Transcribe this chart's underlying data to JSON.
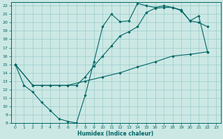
{
  "xlabel": "Humidex (Indice chaleur)",
  "bg_color": "#cce8e4",
  "grid_color": "#99cccc",
  "line_color": "#006666",
  "xlim": [
    -0.5,
    23.5
  ],
  "ylim": [
    8,
    22.4
  ],
  "xticks": [
    0,
    1,
    2,
    3,
    4,
    5,
    6,
    7,
    8,
    9,
    10,
    11,
    12,
    13,
    14,
    15,
    16,
    17,
    18,
    19,
    20,
    21,
    22,
    23
  ],
  "yticks": [
    8,
    9,
    10,
    11,
    12,
    13,
    14,
    15,
    16,
    17,
    18,
    19,
    20,
    21,
    22
  ],
  "line1_x": [
    0,
    1,
    2,
    3,
    4,
    5,
    6,
    7,
    8,
    9,
    10,
    11,
    12,
    13,
    14,
    15,
    16,
    17,
    18,
    19,
    20,
    21,
    22
  ],
  "line1_y": [
    15,
    12.5,
    11.7,
    10.5,
    9.5,
    8.5,
    8.2,
    8.0,
    11.3,
    15.3,
    19.5,
    21.0,
    20.1,
    20.2,
    22.3,
    22.0,
    21.8,
    22.0,
    21.8,
    21.4,
    20.2,
    20.0,
    19.5
  ],
  "line2_x": [
    0,
    2,
    3,
    4,
    5,
    6,
    7,
    8,
    9,
    10,
    11,
    12,
    13,
    14,
    15,
    16,
    17,
    18,
    19,
    20,
    21,
    22
  ],
  "line2_y": [
    15,
    12.5,
    12.5,
    12.5,
    12.5,
    12.5,
    12.5,
    13.5,
    14.8,
    16.0,
    17.2,
    18.4,
    18.9,
    19.5,
    21.2,
    21.7,
    21.8,
    21.8,
    21.5,
    20.2,
    20.8,
    16.5
  ],
  "line3_x": [
    0,
    2,
    4,
    6,
    8,
    10,
    12,
    14,
    16,
    18,
    20,
    22
  ],
  "line3_y": [
    15,
    12.5,
    12.5,
    12.5,
    13.0,
    13.5,
    14.0,
    14.7,
    15.3,
    16.0,
    16.2,
    16.5
  ],
  "markersize": 2.2
}
